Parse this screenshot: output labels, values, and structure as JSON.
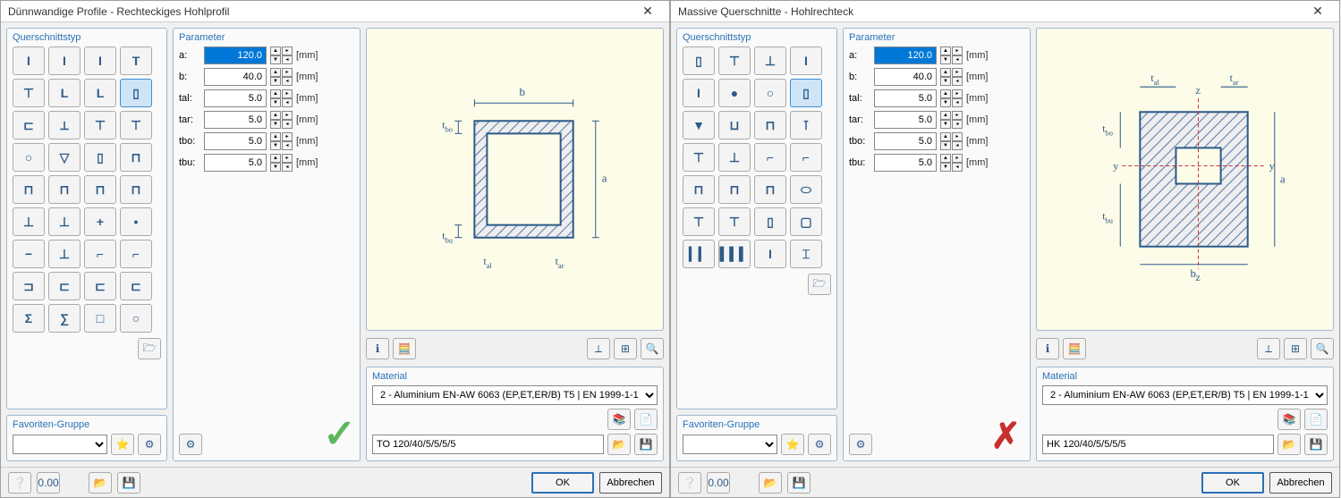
{
  "windows": [
    {
      "title": "Dünnwandige Profile - Rechteckiges Hohlprofil",
      "mark": "check",
      "querschnittstyp_label": "Querschnittstyp",
      "parameter_label": "Parameter",
      "material_label": "Material",
      "favoriten_label": "Favoriten-Gruppe",
      "ok_label": "OK",
      "cancel_label": "Abbrechen",
      "material_value": "2 - Aluminium EN-AW 6063 (EP,ET,ER/B) T5 | EN 1999-1-1",
      "name_value": "TO 120/40/5/5/5/5",
      "profiles": [
        [
          "I",
          "I",
          "I",
          "T"
        ],
        [
          "⊤",
          "L",
          "L",
          "▯"
        ],
        [
          "⊏",
          "⟂",
          "⊤",
          "⊤"
        ],
        [
          "○",
          "▽",
          "▯",
          "⊓"
        ],
        [
          "⊓",
          "⊓",
          "⊓",
          "⊓"
        ],
        [
          "⊥",
          "⊥",
          "+",
          "•"
        ],
        [
          "−",
          "⊥",
          "⌐",
          "⌐"
        ],
        [
          "⊐",
          "⊏",
          "⊏",
          "⊏"
        ],
        [
          "Σ",
          "∑",
          "□",
          "○"
        ]
      ],
      "selected_profile": [
        1,
        3
      ],
      "parameters": [
        {
          "label": "a:",
          "value": "120.0",
          "unit": "[mm]",
          "selected": true
        },
        {
          "label": "b:",
          "value": "40.0",
          "unit": "[mm]"
        },
        {
          "label": "tal:",
          "value": "5.0",
          "unit": "[mm]"
        },
        {
          "label": "tar:",
          "value": "5.0",
          "unit": "[mm]"
        },
        {
          "label": "tbo:",
          "value": "5.0",
          "unit": "[mm]"
        },
        {
          "label": "tbu:",
          "value": "5.0",
          "unit": "[mm]"
        }
      ],
      "preview_type": "hollow-rect-open",
      "dim_labels": {
        "a": "a",
        "b": "b",
        "tal": "t",
        "tar": "t",
        "tbo": "t",
        "tbu": "t",
        "tal_sub": "al",
        "tar_sub": "ar",
        "tbo_sub": "bo",
        "tbu_sub": "bu"
      }
    },
    {
      "title": "Massive Querschnitte - Hohlrechteck",
      "mark": "cross",
      "querschnittstyp_label": "Querschnittstyp",
      "parameter_label": "Parameter",
      "material_label": "Material",
      "favoriten_label": "Favoriten-Gruppe",
      "ok_label": "OK",
      "cancel_label": "Abbrechen",
      "material_value": "2 - Aluminium EN-AW 6063 (EP,ET,ER/B) T5 | EN 1999-1-1",
      "name_value": "HK 120/40/5/5/5/5",
      "profiles": [
        [
          "▯",
          "⊤",
          "⊥",
          "I"
        ],
        [
          "I",
          "●",
          "○",
          "▯"
        ],
        [
          "▼",
          "⊔",
          "⊓",
          "⊺"
        ],
        [
          "⊤",
          "⊥",
          "⌐",
          "⌐"
        ],
        [
          "⊓",
          "⊓",
          "⊓",
          "⬭"
        ],
        [
          "⊤",
          "⊤",
          "▯",
          "▢"
        ],
        [
          "▎▎",
          "▍▍▍",
          "I",
          "⌶"
        ]
      ],
      "selected_profile": [
        1,
        3
      ],
      "parameters": [
        {
          "label": "a:",
          "value": "120.0",
          "unit": "[mm]",
          "selected": true
        },
        {
          "label": "b:",
          "value": "40.0",
          "unit": "[mm]"
        },
        {
          "label": "tal:",
          "value": "5.0",
          "unit": "[mm]"
        },
        {
          "label": "tar:",
          "value": "5.0",
          "unit": "[mm]"
        },
        {
          "label": "tbo:",
          "value": "5.0",
          "unit": "[mm]"
        },
        {
          "label": "tbu:",
          "value": "5.0",
          "unit": "[mm]"
        }
      ],
      "preview_type": "hollow-rect-solid",
      "dim_labels": {
        "a": "a",
        "b": "b",
        "tal": "t",
        "tar": "t",
        "tbo": "t",
        "tbu": "t",
        "tal_sub": "al",
        "tar_sub": "ar",
        "tbo_sub": "bo",
        "tbu_sub": "bu"
      }
    }
  ]
}
